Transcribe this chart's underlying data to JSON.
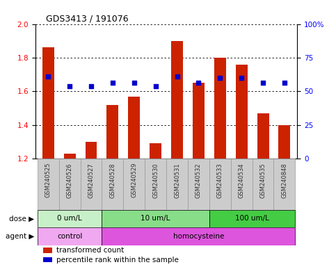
{
  "title": "GDS3413 / 191076",
  "samples": [
    "GSM240525",
    "GSM240526",
    "GSM240527",
    "GSM240528",
    "GSM240529",
    "GSM240530",
    "GSM240531",
    "GSM240532",
    "GSM240533",
    "GSM240534",
    "GSM240535",
    "GSM240848"
  ],
  "red_values": [
    1.86,
    1.23,
    1.3,
    1.52,
    1.57,
    1.29,
    1.9,
    1.65,
    1.8,
    1.76,
    1.47,
    1.4
  ],
  "blue_values": [
    1.69,
    1.63,
    1.63,
    1.65,
    1.65,
    1.63,
    1.69,
    1.65,
    1.68,
    1.68,
    1.65,
    1.65
  ],
  "ymin": 1.2,
  "ymax": 2.0,
  "y_ticks_left": [
    1.2,
    1.4,
    1.6,
    1.8,
    2.0
  ],
  "y_ticks_right": [
    0,
    25,
    50,
    75,
    100
  ],
  "right_tick_labels": [
    "0",
    "25",
    "50",
    "75",
    "100%"
  ],
  "dose_groups": [
    {
      "label": "0 um/L",
      "start": 0,
      "end": 3,
      "color": "#C8F0C8"
    },
    {
      "label": "10 um/L",
      "start": 3,
      "end": 8,
      "color": "#88DD88"
    },
    {
      "label": "100 um/L",
      "start": 8,
      "end": 12,
      "color": "#44CC44"
    }
  ],
  "agent_groups": [
    {
      "label": "control",
      "start": 0,
      "end": 3,
      "color": "#F0A8F0"
    },
    {
      "label": "homocysteine",
      "start": 3,
      "end": 12,
      "color": "#DD55DD"
    }
  ],
  "dose_label": "dose",
  "agent_label": "agent",
  "legend_red": "transformed count",
  "legend_blue": "percentile rank within the sample",
  "bar_color": "#CC2200",
  "dot_color": "#0000CC",
  "xlabel_bg": "#CCCCCC",
  "xlabel_border": "#999999"
}
